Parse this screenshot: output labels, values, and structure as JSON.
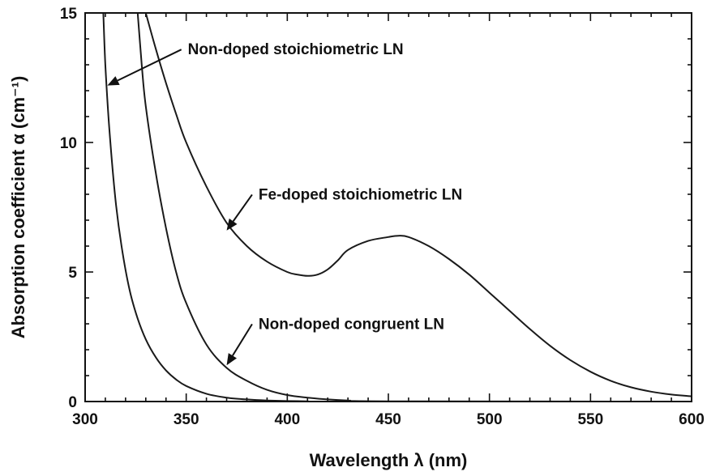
{
  "chart_data": {
    "type": "line",
    "xlabel": "Wavelength λ (nm)",
    "ylabel": "Absorption coefficient α (cm⁻¹)",
    "xlim": [
      300,
      600
    ],
    "ylim": [
      0,
      15
    ],
    "x_ticks": [
      300,
      350,
      400,
      450,
      500,
      550,
      600
    ],
    "y_ticks": [
      0,
      5,
      10,
      15
    ],
    "x_minor_step": 10,
    "y_minor_step": 1,
    "grid": false,
    "legend": "none",
    "series": [
      {
        "name": "Non-doped stoichiometric LN",
        "x": [
          309,
          310,
          312,
          315,
          318,
          322,
          326,
          330,
          335,
          340,
          345,
          350,
          360,
          370,
          380,
          390,
          400,
          410,
          420,
          600
        ],
        "y": [
          15,
          13.0,
          10.5,
          7.8,
          6.0,
          4.3,
          3.2,
          2.4,
          1.7,
          1.2,
          0.85,
          0.6,
          0.3,
          0.15,
          0.08,
          0.04,
          0.02,
          0.01,
          0.0,
          0.0
        ]
      },
      {
        "name": "Non-doped congruent LN",
        "x": [
          326,
          328,
          330,
          335,
          340,
          345,
          350,
          360,
          370,
          380,
          390,
          400,
          410,
          420,
          430,
          450,
          600
        ],
        "y": [
          15,
          13.0,
          11.4,
          8.8,
          6.7,
          5.0,
          3.8,
          2.2,
          1.3,
          0.8,
          0.45,
          0.25,
          0.15,
          0.08,
          0.04,
          0.01,
          0.0
        ]
      },
      {
        "name": "Fe-doped stoichiometric LN",
        "x": [
          330,
          335,
          340,
          345,
          350,
          360,
          370,
          380,
          390,
          400,
          405,
          410,
          415,
          420,
          425,
          430,
          440,
          450,
          455,
          460,
          470,
          480,
          490,
          500,
          510,
          520,
          530,
          540,
          550,
          560,
          570,
          580,
          590,
          600
        ],
        "y": [
          15,
          13.6,
          12.3,
          11.1,
          10.0,
          8.3,
          6.9,
          6.0,
          5.4,
          5.0,
          4.9,
          4.85,
          4.9,
          5.1,
          5.45,
          5.85,
          6.2,
          6.35,
          6.4,
          6.35,
          6.0,
          5.5,
          4.9,
          4.2,
          3.5,
          2.8,
          2.15,
          1.6,
          1.15,
          0.8,
          0.55,
          0.38,
          0.27,
          0.2
        ]
      }
    ],
    "annotations": [
      {
        "text": "Non-doped stoichiometric LN",
        "target": [
          311,
          12.2
        ],
        "text_pos": [
          350,
          13.4
        ]
      },
      {
        "text": "Fe-doped stoichiometric LN",
        "target": [
          370,
          6.6
        ],
        "text_pos": [
          385,
          7.8
        ]
      },
      {
        "text": "Non-doped congruent LN",
        "target": [
          370,
          1.4
        ],
        "text_pos": [
          385,
          2.8
        ]
      }
    ]
  }
}
